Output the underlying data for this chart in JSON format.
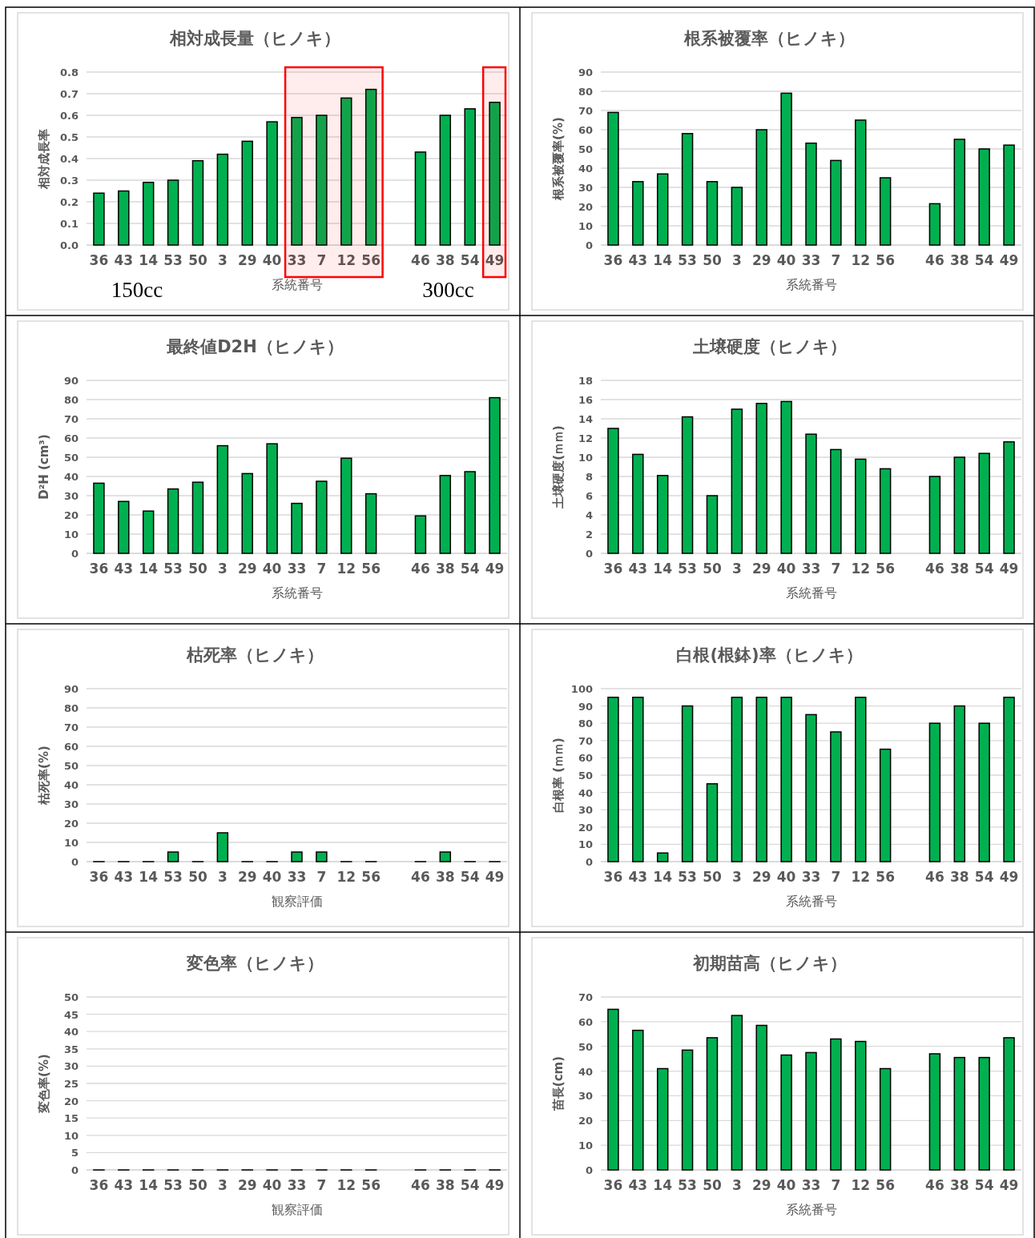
{
  "chart_data": [
    {
      "type": "bar",
      "title": "相対成長量（ヒノキ）",
      "xlabel": "系統番号",
      "ylabel": "相対成長率",
      "categories": [
        "36",
        "43",
        "14",
        "53",
        "50",
        "3",
        "29",
        "40",
        "33",
        "7",
        "12",
        "56",
        null,
        "46",
        "38",
        "54",
        "49"
      ],
      "values": [
        0.24,
        0.25,
        0.29,
        0.3,
        0.39,
        0.42,
        0.48,
        0.57,
        0.59,
        0.6,
        0.68,
        0.72,
        null,
        0.43,
        0.6,
        0.63,
        0.66
      ],
      "color": "#00b050",
      "ylim": [
        0,
        0.8
      ],
      "yticks": [
        {
          "value": 0,
          "label": "0.0"
        },
        0.1,
        0.2,
        0.3,
        0.4,
        0.5,
        0.6,
        0.7,
        0.8
      ],
      "grid": "y",
      "annotations": [
        "150cc",
        "300cc"
      ],
      "bands": [
        {
          "axis": "x",
          "from": "33",
          "to": "56",
          "color": "#ff0000"
        },
        {
          "axis": "x",
          "from": "49",
          "to": "49",
          "color": "#ff0000"
        }
      ]
    },
    {
      "type": "bar",
      "title": "根系被覆率（ヒノキ）",
      "xlabel": "系統番号",
      "ylabel": "根系被覆率(%)",
      "categories": [
        "36",
        "43",
        "14",
        "53",
        "50",
        "3",
        "29",
        "40",
        "33",
        "7",
        "12",
        "56",
        null,
        "46",
        "38",
        "54",
        "49"
      ],
      "values": [
        69,
        33,
        37,
        58,
        33,
        30,
        60,
        79,
        53,
        44,
        65,
        35,
        null,
        21.5,
        55,
        50,
        52
      ],
      "color": "#00b050",
      "ylim": [
        0,
        90
      ],
      "yticks": [
        0,
        10,
        20,
        30,
        40,
        50,
        60,
        70,
        80,
        90
      ],
      "grid": "y"
    },
    {
      "type": "bar",
      "title": "最終値D2H（ヒノキ）",
      "xlabel": "系統番号",
      "ylabel": "D²H (cm³)",
      "categories": [
        "36",
        "43",
        "14",
        "53",
        "50",
        "3",
        "29",
        "40",
        "33",
        "7",
        "12",
        "56",
        null,
        "46",
        "38",
        "54",
        "49"
      ],
      "values": [
        36.5,
        27,
        22,
        33.5,
        37,
        56,
        41.5,
        57,
        26,
        37.5,
        49.5,
        31,
        null,
        19.5,
        40.5,
        42.5,
        81
      ],
      "color": "#00b050",
      "ylim": [
        0,
        90
      ],
      "yticks": [
        0,
        10,
        20,
        30,
        40,
        50,
        60,
        70,
        80,
        90
      ],
      "grid": "y"
    },
    {
      "type": "bar",
      "title": "土壌硬度（ヒノキ）",
      "xlabel": "系統番号",
      "ylabel": "土壌硬度(ｍｍ)",
      "categories": [
        "36",
        "43",
        "14",
        "53",
        "50",
        "3",
        "29",
        "40",
        "33",
        "7",
        "12",
        "56",
        null,
        "46",
        "38",
        "54",
        "49"
      ],
      "values": [
        13,
        10.3,
        8.1,
        14.2,
        6,
        15,
        15.6,
        15.8,
        12.4,
        10.8,
        9.8,
        8.8,
        null,
        8,
        10,
        10.4,
        11.6
      ],
      "color": "#00b050",
      "ylim": [
        0,
        18
      ],
      "yticks": [
        0,
        2,
        4,
        6,
        8,
        10,
        12,
        14,
        16,
        18
      ],
      "grid": "y"
    },
    {
      "type": "bar",
      "title": "枯死率（ヒノキ）",
      "xlabel": "観察評価",
      "ylabel": "枯死率(%)",
      "categories": [
        "36",
        "43",
        "14",
        "53",
        "50",
        "3",
        "29",
        "40",
        "33",
        "7",
        "12",
        "56",
        null,
        "46",
        "38",
        "54",
        "49"
      ],
      "values": [
        0,
        0,
        0,
        5,
        0,
        15,
        0,
        0,
        5,
        5,
        0,
        0,
        null,
        0,
        5,
        0,
        0
      ],
      "color": "#00b050",
      "ylim": [
        0,
        90
      ],
      "yticks": [
        0,
        10,
        20,
        30,
        40,
        50,
        60,
        70,
        80,
        90
      ],
      "grid": "y"
    },
    {
      "type": "bar",
      "title": "白根(根鉢)率（ヒノキ）",
      "xlabel": "系統番号",
      "ylabel": "白根率 (ｍｍ)",
      "categories": [
        "36",
        "43",
        "14",
        "53",
        "50",
        "3",
        "29",
        "40",
        "33",
        "7",
        "12",
        "56",
        null,
        "46",
        "38",
        "54",
        "49"
      ],
      "values": [
        95,
        95,
        5,
        90,
        45,
        95,
        95,
        95,
        85,
        75,
        95,
        65,
        null,
        80,
        90,
        80,
        95
      ],
      "color": "#00b050",
      "ylim": [
        0,
        100
      ],
      "yticks": [
        0,
        10,
        20,
        30,
        40,
        50,
        60,
        70,
        80,
        90,
        100
      ],
      "grid": "y"
    },
    {
      "type": "bar",
      "title": "変色率（ヒノキ）",
      "xlabel": "観察評価",
      "ylabel": "変色率(%)",
      "categories": [
        "36",
        "43",
        "14",
        "53",
        "50",
        "3",
        "29",
        "40",
        "33",
        "7",
        "12",
        "56",
        null,
        "46",
        "38",
        "54",
        "49"
      ],
      "values": [
        0,
        0,
        0,
        0,
        0,
        0,
        0,
        0,
        0,
        0,
        0,
        0,
        null,
        0,
        0,
        0,
        0
      ],
      "color": "#00b050",
      "ylim": [
        0,
        50
      ],
      "yticks": [
        0,
        5,
        10,
        15,
        20,
        25,
        30,
        35,
        40,
        45,
        50
      ],
      "grid": "y"
    },
    {
      "type": "bar",
      "title": "初期苗高（ヒノキ）",
      "xlabel": "系統番号",
      "ylabel": "苗長(cm)",
      "categories": [
        "36",
        "43",
        "14",
        "53",
        "50",
        "3",
        "29",
        "40",
        "33",
        "7",
        "12",
        "56",
        null,
        "46",
        "38",
        "54",
        "49"
      ],
      "values": [
        65,
        56.5,
        41,
        48.5,
        53.5,
        62.5,
        58.5,
        46.5,
        47.5,
        53,
        52,
        41,
        null,
        47,
        45.5,
        45.5,
        53.5
      ],
      "color": "#00b050",
      "ylim": [
        0,
        70
      ],
      "yticks": [
        0,
        10,
        20,
        30,
        40,
        50,
        60,
        70
      ],
      "grid": "y"
    }
  ]
}
